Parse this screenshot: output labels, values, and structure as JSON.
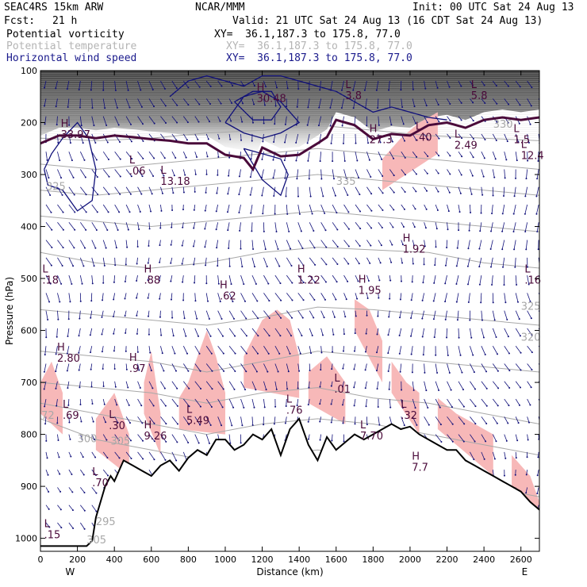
{
  "header": {
    "model": "SEAC4RS 15km ARW",
    "org": "NCAR/MMM",
    "init": "Init: 00 UTC Sat 24 Aug 13",
    "fcst_label": "Fcst:",
    "fcst_value": "21 h",
    "valid": "Valid: 21 UTC Sat 24 Aug 13 (16 CDT Sat 24 Aug 13)"
  },
  "fields": [
    {
      "name": "Potential vorticity",
      "xy": "XY=  36.1,187.3 to 175.8, 77.0",
      "color": "#000000"
    },
    {
      "name": "Potential temperature",
      "xy": "XY=  36.1,187.3 to 175.8, 77.0",
      "color": "#b4b4b4"
    },
    {
      "name": "Horizontal wind speed",
      "xy": "XY=  36.1,187.3 to 175.8, 77.0",
      "color": "#1a1a8c"
    }
  ],
  "colors": {
    "pv_shade": "#f7b8b8",
    "pv_contour": "#4a0a3a",
    "theta": "#a8a8a8",
    "wind": "#10107a",
    "terrain": "#000000",
    "stratosphere_dark": "#404040"
  },
  "chart_data": {
    "type": "cross-section",
    "xlabel": "Distance (km)",
    "ylabel": "Pressure (hPa)",
    "xlim": [
      0,
      2700
    ],
    "ylim": [
      1025,
      100
    ],
    "x_ticks": [
      0,
      200,
      400,
      600,
      800,
      1000,
      1200,
      1400,
      1600,
      1800,
      2000,
      2200,
      2400,
      2600
    ],
    "y_ticks": [
      100,
      200,
      300,
      400,
      500,
      600,
      700,
      800,
      900,
      1000
    ],
    "x_end_labels": {
      "left": "W",
      "right": "E"
    },
    "terrain": {
      "x": [
        0,
        50,
        100,
        150,
        200,
        250,
        280,
        300,
        350,
        380,
        400,
        450,
        500,
        550,
        600,
        650,
        700,
        750,
        800,
        850,
        900,
        950,
        1000,
        1050,
        1100,
        1150,
        1200,
        1250,
        1300,
        1350,
        1400,
        1450,
        1500,
        1550,
        1600,
        1650,
        1700,
        1750,
        1800,
        1850,
        1900,
        1950,
        2000,
        2050,
        2100,
        2150,
        2200,
        2250,
        2300,
        2350,
        2400,
        2450,
        2500,
        2550,
        2600,
        2650,
        2700
      ],
      "p": [
        1015,
        1015,
        1015,
        1015,
        1015,
        1015,
        1005,
        960,
        900,
        880,
        890,
        850,
        860,
        870,
        880,
        860,
        850,
        870,
        845,
        830,
        840,
        810,
        810,
        830,
        820,
        800,
        810,
        790,
        840,
        790,
        770,
        820,
        850,
        805,
        830,
        815,
        800,
        810,
        800,
        790,
        780,
        790,
        785,
        800,
        810,
        820,
        830,
        830,
        850,
        860,
        870,
        880,
        890,
        900,
        910,
        930,
        945
      ]
    },
    "tropopause_2pvu": {
      "x": [
        0,
        100,
        200,
        300,
        400,
        500,
        600,
        700,
        800,
        900,
        1000,
        1100,
        1150,
        1200,
        1300,
        1400,
        1500,
        1550,
        1600,
        1700,
        1800,
        1900,
        2000,
        2100,
        2200,
        2300,
        2400,
        2500,
        2600,
        2700
      ],
      "p": [
        240,
        225,
        225,
        230,
        225,
        228,
        232,
        235,
        240,
        240,
        262,
        268,
        290,
        248,
        265,
        262,
        240,
        228,
        195,
        205,
        232,
        222,
        225,
        205,
        200,
        210,
        195,
        190,
        195,
        190
      ]
    },
    "pv_shading_patches": [
      {
        "x": [
          0,
          60,
          120
        ],
        "p": [
          700,
          660,
          720
        ]
      },
      {
        "x": [
          300,
          400,
          480
        ],
        "p": [
          770,
          720,
          800
        ]
      },
      {
        "x": [
          560,
          600,
          650
        ],
        "p": [
          700,
          640,
          760
        ]
      },
      {
        "x": [
          750,
          800,
          850,
          900,
          950,
          1000
        ],
        "p": [
          730,
          700,
          650,
          600,
          650,
          720
        ]
      },
      {
        "x": [
          1100,
          1200,
          1280,
          1350,
          1400
        ],
        "p": [
          650,
          580,
          560,
          580,
          650
        ]
      },
      {
        "x": [
          1450,
          1550,
          1650
        ],
        "p": [
          680,
          650,
          700
        ]
      },
      {
        "x": [
          1700,
          1780,
          1850
        ],
        "p": [
          540,
          560,
          620
        ]
      },
      {
        "x": [
          1900,
          1980,
          2050
        ],
        "p": [
          660,
          700,
          720
        ]
      },
      {
        "x": [
          2150,
          2250,
          2350,
          2450
        ],
        "p": [
          730,
          760,
          780,
          800
        ]
      },
      {
        "x": [
          2550,
          2650,
          2700
        ],
        "p": [
          840,
          880,
          930
        ]
      },
      {
        "x": [
          1850,
          1950,
          2050,
          2150
        ],
        "p": [
          270,
          230,
          200,
          180
        ]
      }
    ],
    "theta_contours": [
      {
        "label": "300",
        "x": [
          0,
          300,
          600,
          900,
          1200,
          1500,
          1800,
          2100,
          2400,
          2700
        ],
        "p": [
          770,
          810,
          830,
          850,
          840,
          830,
          840,
          880,
          900,
          920
        ]
      },
      {
        "label": "305",
        "x": [
          0,
          300,
          600,
          900,
          1200,
          1500,
          1800,
          2100,
          2400,
          2700
        ],
        "p": [
          740,
          760,
          780,
          800,
          780,
          770,
          780,
          800,
          820,
          840
        ]
      },
      {
        "label": "310",
        "x": [
          0,
          300,
          600,
          900,
          1200,
          1500,
          1800,
          2100,
          2400,
          2700
        ],
        "p": [
          700,
          710,
          720,
          740,
          720,
          710,
          730,
          740,
          760,
          780
        ]
      },
      {
        "label": "315",
        "x": [
          0,
          300,
          600,
          900,
          1200,
          1500,
          1800,
          2100,
          2400,
          2700
        ],
        "p": [
          640,
          650,
          660,
          680,
          660,
          640,
          650,
          660,
          670,
          680
        ]
      },
      {
        "label": "320",
        "x": [
          0,
          300,
          600,
          900,
          1200,
          1500,
          1800,
          2100,
          2400,
          2700
        ],
        "p": [
          560,
          570,
          580,
          590,
          575,
          555,
          560,
          570,
          580,
          590
        ]
      },
      {
        "label": "325",
        "x": [
          0,
          300,
          600,
          900,
          1200,
          1500,
          1800,
          2100,
          2400,
          2700
        ],
        "p": [
          450,
          470,
          480,
          470,
          450,
          440,
          445,
          450,
          470,
          480
        ]
      },
      {
        "label": "330",
        "x": [
          0,
          300,
          600,
          900,
          1200,
          1500,
          1800,
          2100,
          2400,
          2700
        ],
        "p": [
          380,
          390,
          400,
          390,
          380,
          370,
          380,
          390,
          400,
          410
        ]
      },
      {
        "label": "335",
        "x": [
          0,
          300,
          600,
          900,
          1200,
          1500,
          1800,
          2100,
          2400,
          2700
        ],
        "p": [
          330,
          340,
          330,
          320,
          310,
          300,
          310,
          320,
          330,
          340
        ]
      },
      {
        "label": "340",
        "x": [
          0,
          300,
          600,
          900,
          1200,
          1500,
          1800,
          2100,
          2400,
          2700
        ],
        "p": [
          280,
          290,
          280,
          270,
          260,
          250,
          260,
          270,
          280,
          290
        ]
      },
      {
        "label": "350",
        "x": [
          0,
          300,
          600,
          900,
          1200,
          1500,
          1800,
          2100,
          2400,
          2700
        ],
        "p": [
          230,
          235,
          230,
          220,
          215,
          205,
          215,
          225,
          230,
          235
        ]
      }
    ],
    "wind_contours": [
      {
        "label": "20",
        "x": [
          20,
          60,
          120,
          200,
          260,
          300,
          280,
          200,
          120,
          40,
          20
        ],
        "p": [
          290,
          260,
          230,
          200,
          230,
          290,
          350,
          370,
          330,
          320,
          290
        ]
      },
      {
        "label": "20",
        "x": [
          700,
          800,
          900,
          1000,
          1100,
          1200,
          1300,
          1400,
          1500,
          1600,
          1700,
          1800,
          1900,
          2000,
          2100,
          2200
        ],
        "p": [
          150,
          120,
          110,
          120,
          130,
          110,
          110,
          120,
          130,
          140,
          160,
          180,
          170,
          180,
          190,
          195
        ]
      },
      {
        "label": "25",
        "x": [
          1000,
          1100,
          1200,
          1300,
          1400,
          1300,
          1200,
          1100,
          1000
        ],
        "p": [
          200,
          150,
          140,
          160,
          200,
          220,
          230,
          220,
          200
        ]
      },
      {
        "label": "30.48",
        "x": [
          1050,
          1150,
          1250,
          1300,
          1250,
          1150,
          1050
        ],
        "p": [
          160,
          140,
          140,
          170,
          195,
          195,
          160
        ]
      },
      {
        "label": "20",
        "x": [
          1100,
          1200,
          1300,
          1340,
          1300,
          1200,
          1100
        ],
        "p": [
          250,
          260,
          270,
          300,
          340,
          310,
          250
        ]
      }
    ],
    "extrema": [
      {
        "type": "H",
        "value": "33.97",
        "x": 110,
        "p": 230
      },
      {
        "type": "L",
        "value": ".06",
        "x": 480,
        "p": 300
      },
      {
        "type": "L",
        "value": "13.18",
        "x": 650,
        "p": 320
      },
      {
        "type": "H",
        "value": "30.48",
        "x": 1170,
        "p": 160
      },
      {
        "type": "L",
        "value": "3.8",
        "x": 1650,
        "p": 155
      },
      {
        "type": "L",
        "value": "5.8",
        "x": 2330,
        "p": 155
      },
      {
        "type": "H",
        "value": "27.3",
        "x": 1780,
        "p": 240
      },
      {
        "type": "L",
        "value": ".40",
        "x": 2030,
        "p": 235
      },
      {
        "type": "L",
        "value": "2.49",
        "x": 2240,
        "p": 250
      },
      {
        "type": "L",
        "value": "1.5",
        "x": 2560,
        "p": 240
      },
      {
        "type": "L",
        "value": "12.4",
        "x": 2600,
        "p": 270
      },
      {
        "type": "L",
        "value": ".18",
        "x": 10,
        "p": 510
      },
      {
        "type": "H",
        "value": ".88",
        "x": 560,
        "p": 510
      },
      {
        "type": "H",
        "value": "1.22",
        "x": 1390,
        "p": 510
      },
      {
        "type": "H",
        "value": ".62",
        "x": 970,
        "p": 540
      },
      {
        "type": "H",
        "value": "1.92",
        "x": 1960,
        "p": 450
      },
      {
        "type": "H",
        "value": "1.95",
        "x": 1720,
        "p": 530
      },
      {
        "type": "L",
        "value": ".16",
        "x": 2620,
        "p": 510
      },
      {
        "type": "H",
        "value": "2.80",
        "x": 90,
        "p": 660
      },
      {
        "type": "H",
        "value": ".97",
        "x": 480,
        "p": 680
      },
      {
        "type": "L",
        "value": ".01",
        "x": 1590,
        "p": 720
      },
      {
        "type": "L",
        "value": ".69",
        "x": 120,
        "p": 770
      },
      {
        "type": "L",
        "value": ".30",
        "x": 370,
        "p": 790
      },
      {
        "type": "H",
        "value": "9.26",
        "x": 560,
        "p": 810
      },
      {
        "type": "L",
        "value": "5.49",
        "x": 790,
        "p": 780
      },
      {
        "type": "L",
        "value": ".32",
        "x": 1950,
        "p": 770
      },
      {
        "type": "L",
        "value": ".76",
        "x": 1330,
        "p": 760
      },
      {
        "type": "L",
        "value": "7.70",
        "x": 1730,
        "p": 810
      },
      {
        "type": "H",
        "value": "7.7",
        "x": 2010,
        "p": 870
      },
      {
        "type": "L",
        "value": ".70",
        "x": 280,
        "p": 900
      },
      {
        "type": "L",
        "value": ".15",
        "x": 20,
        "p": 1000
      }
    ],
    "edge_labels": [
      {
        "value": "72",
        "x": 5,
        "p": 770
      },
      {
        "value": "325",
        "x": 30,
        "p": 330
      },
      {
        "value": "300",
        "x": 200,
        "p": 815
      },
      {
        "value": "305",
        "x": 380,
        "p": 820
      },
      {
        "value": "295",
        "x": 300,
        "p": 975
      },
      {
        "value": "305",
        "x": 250,
        "p": 1010
      },
      {
        "value": "330",
        "x": 2450,
        "p": 210
      },
      {
        "value": "335",
        "x": 1600,
        "p": 320
      },
      {
        "value": "320",
        "x": 2600,
        "p": 620
      },
      {
        "value": "325",
        "x": 2600,
        "p": 560
      }
    ]
  }
}
